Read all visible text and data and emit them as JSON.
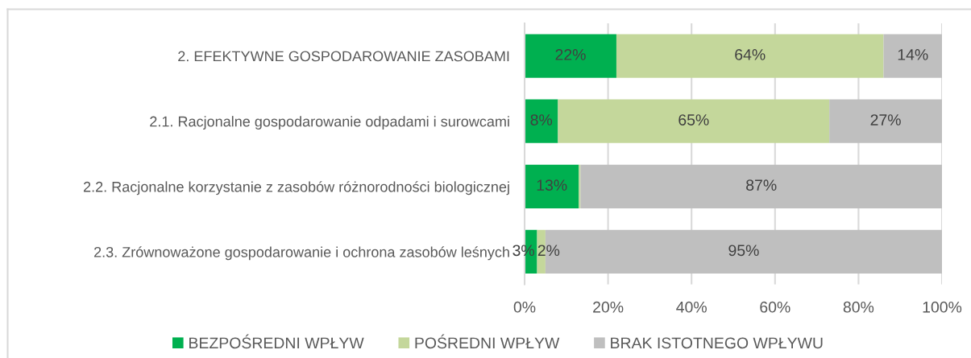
{
  "chart_data": {
    "type": "bar",
    "orientation": "horizontal",
    "stacked": true,
    "categories": [
      "2. EFEKTYWNE GOSPODAROWANIE ZASOBAMI",
      "2.1. Racjonalne gospodarowanie odpadami i surowcami",
      "2.2. Racjonalne korzystanie z zasobów różnorodności biologicznej",
      "2.3. Zrównoważone gospodarowanie i ochrona zasobów leśnych"
    ],
    "series": [
      {
        "name": "BEZPOŚREDNI WPŁYW",
        "color": "#00b050",
        "values": [
          22,
          8,
          13,
          3
        ],
        "value_labels": [
          "22%",
          "8%",
          "13%",
          "3%"
        ]
      },
      {
        "name": "POŚREDNI WPŁYW",
        "color": "#c4d79b",
        "values": [
          64,
          65,
          0.4,
          2
        ],
        "value_labels": [
          "64%",
          "65%",
          null,
          "2%"
        ]
      },
      {
        "name": "BRAK ISTOTNEGO WPŁYWU",
        "color": "#bfbfbf",
        "values": [
          14,
          27,
          86.6,
          95
        ],
        "value_labels": [
          "14%",
          "27%",
          "87%",
          "95%"
        ]
      }
    ],
    "xlim": [
      0,
      100
    ],
    "xticks": [
      {
        "value": 0,
        "label": "0%"
      },
      {
        "value": 20,
        "label": "20%"
      },
      {
        "value": 40,
        "label": "40%"
      },
      {
        "value": 60,
        "label": "60%"
      },
      {
        "value": 80,
        "label": "80%"
      },
      {
        "value": 100,
        "label": "100%"
      }
    ],
    "grid": "x",
    "legend": "bottom"
  }
}
